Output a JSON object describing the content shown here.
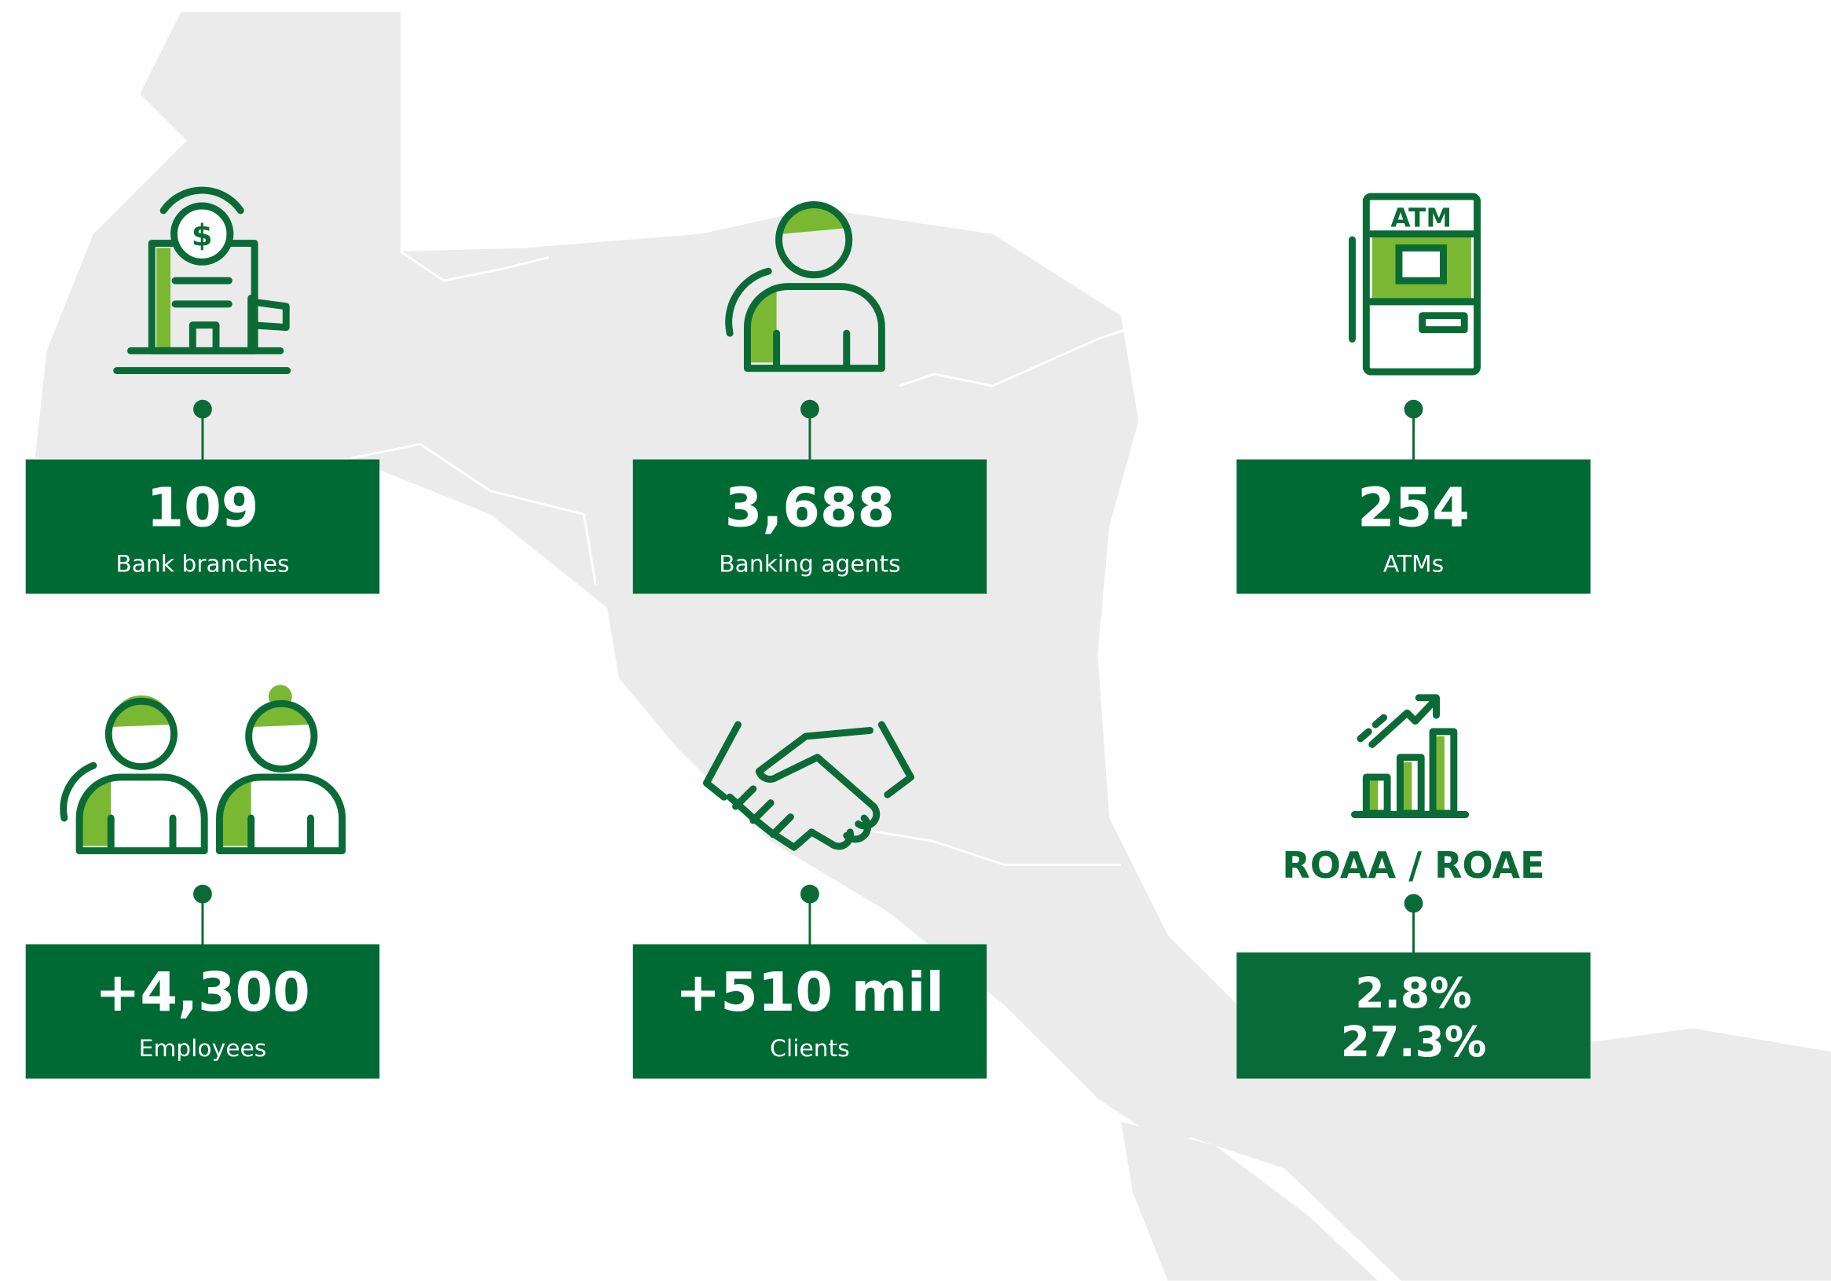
{
  "items": [
    {
      "value": "109",
      "label": "Bank branches"
    },
    {
      "value": "3,688",
      "label": "Banking agents"
    },
    {
      "value": "254",
      "label": "ATMs",
      "icon_text": "ATM"
    },
    {
      "value": "+4,300",
      "label": "Employees"
    },
    {
      "value": "+510 mil",
      "label": "Clients"
    },
    {
      "heading": "ROAA / ROAE",
      "values": [
        "2.8%",
        "27.3%"
      ]
    }
  ]
}
